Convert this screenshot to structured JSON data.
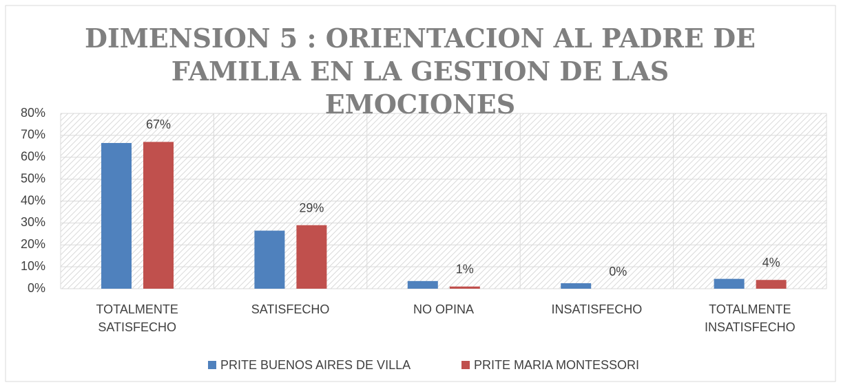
{
  "chart_data": {
    "type": "bar",
    "title": "DIMENSION 5 : ORIENTACION AL PADRE DE FAMILIA EN LA GESTION DE LAS EMOCIONES",
    "categories": [
      "TOTALMENTE SATISFECHO",
      "SATISFECHO",
      "NO OPINA",
      "INSATISFECHO",
      "TOTALMENTE INSATISFECHO"
    ],
    "series": [
      {
        "name": "PRITE BUENOS AIRES DE VILLA",
        "color": "#4f81bd",
        "values": [
          66.5,
          26.5,
          3.5,
          2.5,
          4.5
        ]
      },
      {
        "name": "PRITE MARIA MONTESSORI",
        "color": "#c0504d",
        "values": [
          67,
          29,
          1,
          0,
          4
        ],
        "value_labels": [
          "67%",
          "29%",
          "1%",
          "0%",
          "4%"
        ]
      }
    ],
    "ylim": [
      0,
      80
    ],
    "yticks": [
      {
        "value": 0,
        "label": "0%"
      },
      {
        "value": 10,
        "label": "10%"
      },
      {
        "value": 20,
        "label": "20%"
      },
      {
        "value": 30,
        "label": "30%"
      },
      {
        "value": 40,
        "label": "40%"
      },
      {
        "value": 50,
        "label": "50%"
      },
      {
        "value": 60,
        "label": "60%"
      },
      {
        "value": 70,
        "label": "70%"
      },
      {
        "value": 80,
        "label": "80%"
      }
    ],
    "grid": true,
    "legend": "bottom"
  }
}
